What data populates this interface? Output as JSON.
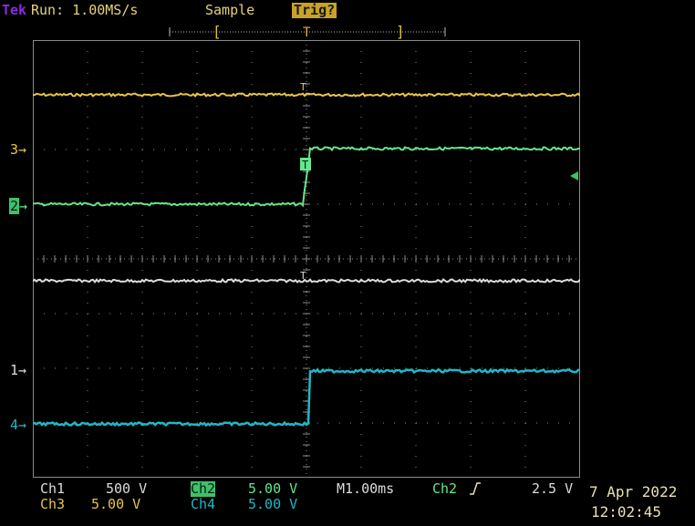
{
  "header": {
    "brand": "Tek",
    "run_status": "Run: 1.00MS/s",
    "acq_mode": "Sample",
    "trigger_status": "Trig?"
  },
  "markers": {
    "ch3": "3",
    "ch2": "2",
    "ch1": "1",
    "ch4": "4",
    "trigger_t": "T"
  },
  "footer": {
    "ch1_label": "Ch1",
    "ch1_scale": "500 V",
    "ch2_label": "Ch2",
    "ch2_scale": "5.00 V",
    "ch3_label": "Ch3",
    "ch3_scale": "5.00 V",
    "ch4_label": "Ch4",
    "ch4_scale": "5.00 V",
    "timebase": "M1.00ms",
    "trig_source": "Ch2",
    "trig_level": "2.5 V",
    "date": "7 Apr 2022",
    "time": "12:02:45"
  },
  "colors": {
    "ch1": "#dcdcdc",
    "ch2": "#64e68c",
    "ch3": "#e8c44a",
    "ch4": "#1fb8c8",
    "grid": "#8a8a8a",
    "background": "#000000"
  }
}
